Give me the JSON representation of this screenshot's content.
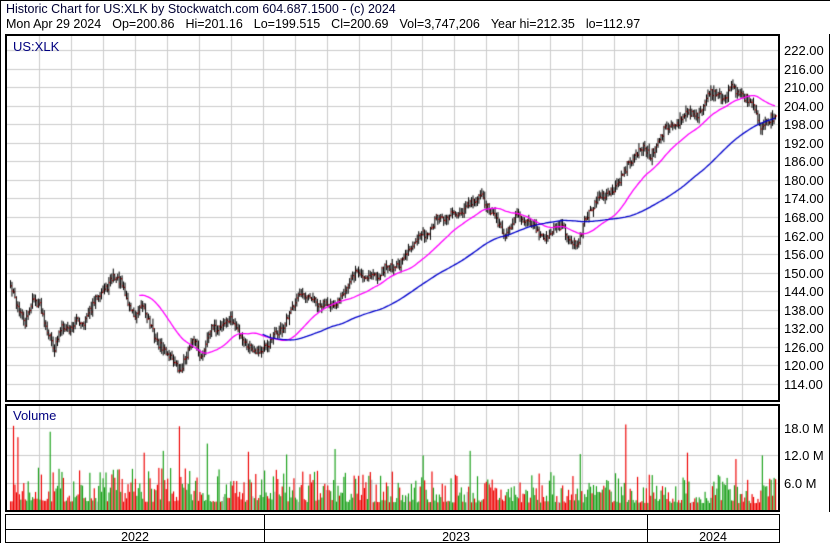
{
  "header": {
    "title": "Historic Chart for US:XLK by Stockwatch.com 604.687.1500 - (c) 2024",
    "quote_parts": [
      "Mon Apr 29 2024",
      "Op=200.86",
      "Hi=201.16",
      "Lo=199.515",
      "Cl=200.69",
      "Vol=3,747,206",
      "Year hi=212.35",
      "lo=112.97"
    ]
  },
  "labels": {
    "symbol": "US:XLK",
    "volume": "Volume"
  },
  "chart_data": {
    "type": "candlestick+volume",
    "symbol": "US:XLK",
    "title": "Historic Chart for US:XLK by Stockwatch.com 604.687.1500 - (c) 2024",
    "date_range": [
      "2022-05-02",
      "2024-04-29"
    ],
    "grid": true,
    "legend_position": "none",
    "price_axis": {
      "min": 111.0,
      "max": 224.0,
      "tick_values": [
        222,
        216,
        210,
        204,
        198,
        192,
        186,
        180,
        174,
        168,
        162,
        156,
        150,
        144,
        138,
        132,
        126,
        120,
        114
      ],
      "tick_labels": [
        "222.00",
        "216.00",
        "210.00",
        "204.00",
        "198.00",
        "192.00",
        "186.00",
        "180.00",
        "174.00",
        "168.00",
        "162.00",
        "156.00",
        "150.00",
        "144.00",
        "138.00",
        "132.00",
        "126.00",
        "120.00",
        "114.00"
      ]
    },
    "volume_axis": {
      "tick_values_millions": [
        18,
        12,
        6
      ],
      "tick_labels": [
        "18.0 M",
        "12.0 M",
        "6.0 M"
      ]
    },
    "x_axis": {
      "months_total": 24,
      "years": [
        {
          "label": "2022",
          "from_month": 0,
          "to_month": 8
        },
        {
          "label": "2023",
          "from_month": 8,
          "to_month": 20
        },
        {
          "label": "2024",
          "from_month": 20,
          "to_month": 24
        }
      ]
    },
    "trading_days": 522,
    "weekly_close_anchors": [
      145.5,
      139.0,
      133.5,
      141.5,
      139.5,
      131.6,
      125.4,
      133.4,
      131.5,
      134.5,
      134.0,
      138.4,
      143.4,
      144.7,
      149.0,
      146.8,
      139.9,
      135.3,
      139.5,
      133.2,
      127.1,
      124.7,
      122.4,
      117.5,
      124.1,
      128.5,
      122.2,
      131.7,
      131.8,
      133.8,
      134.9,
      131.0,
      126.9,
      125.4,
      124.5,
      126.4,
      130.3,
      131.7,
      136.5,
      143.1,
      141.5,
      141.8,
      138.5,
      141.1,
      137.9,
      143.5,
      146.0,
      150.7,
      148.5,
      149.4,
      149.0,
      152.0,
      152.0,
      152.8,
      156.3,
      161.0,
      162.3,
      163.1,
      168.0,
      166.3,
      169.5,
      167.7,
      171.6,
      172.8,
      174.9,
      170.4,
      167.6,
      161.9,
      164.3,
      170.2,
      166.0,
      166.4,
      161.2,
      161.7,
      164.8,
      164.9,
      161.2,
      158.0,
      166.5,
      170.9,
      173.9,
      175.5,
      176.9,
      180.4,
      185.5,
      187.9,
      190.9,
      187.6,
      192.0,
      196.7,
      197.6,
      199.0,
      202.8,
      200.2,
      202.6,
      208.9,
      207.9,
      205.4,
      211.0,
      207.4,
      206.6,
      204.2,
      195.3,
      199.3,
      200.7
    ],
    "last_bar": {
      "open": 200.86,
      "high": 201.16,
      "low": 199.515,
      "close": 200.69
    },
    "year_high": 212.35,
    "year_low": 112.97,
    "moving_averages": [
      {
        "name": "ma-fast",
        "color": "#ff00ff",
        "period_days": 35,
        "draw_from_day": 88
      },
      {
        "name": "ma-slow",
        "color": "#0000cc",
        "period_days": 100,
        "draw_from_day": 172
      }
    ],
    "volume_spikes_millions": [
      {
        "frac": 0.004,
        "m": 18.5
      },
      {
        "frac": 0.01,
        "m": 16.0
      },
      {
        "frac": 0.051,
        "m": 17.2
      },
      {
        "frac": 0.175,
        "m": 12.6
      },
      {
        "frac": 0.2,
        "m": 13.0
      },
      {
        "frac": 0.221,
        "m": 18.4
      },
      {
        "frac": 0.258,
        "m": 14.6
      },
      {
        "frac": 0.31,
        "m": 12.8
      },
      {
        "frac": 0.36,
        "m": 12.2
      },
      {
        "frac": 0.425,
        "m": 13.4
      },
      {
        "frac": 0.54,
        "m": 12.0
      },
      {
        "frac": 0.6,
        "m": 13.0
      },
      {
        "frac": 0.745,
        "m": 12.3
      },
      {
        "frac": 0.804,
        "m": 18.8
      },
      {
        "frac": 0.885,
        "m": 12.6
      },
      {
        "frac": 0.948,
        "m": 11.2
      },
      {
        "frac": 0.982,
        "m": 12.0
      }
    ],
    "colors": {
      "candle": "#000000",
      "close_tick": "#ff0000",
      "grid": "#cccccc",
      "volume_up": "#18a018",
      "volume_down": "#ee0000",
      "volume_neutral": "#b0b0b0",
      "border": "#000000",
      "symbol_label": "#000080"
    }
  }
}
